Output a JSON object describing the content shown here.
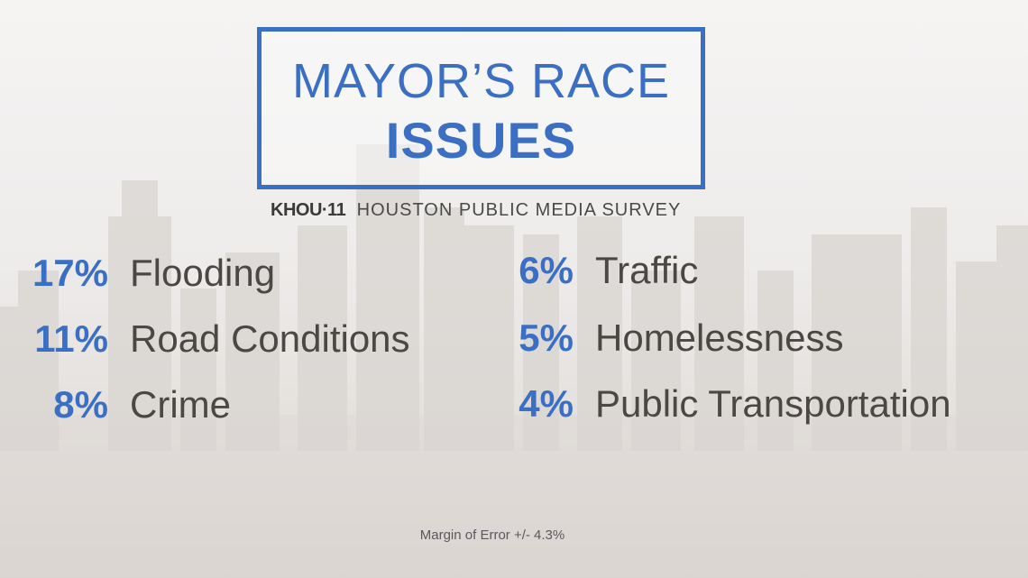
{
  "title": {
    "line1": "MAYOR’S RACE",
    "line2": "ISSUES"
  },
  "source": {
    "logo": "KHOU·11",
    "text": "HOUSTON PUBLIC MEDIA SURVEY"
  },
  "note": "Margin of Error +/- 4.3%",
  "colors": {
    "accent": "#3a6fc4",
    "label": "#4b4744",
    "skyline": "#d8d3cf"
  },
  "chart_data": {
    "type": "table",
    "title": "MAYOR’S RACE ISSUES",
    "items": [
      {
        "value": 17,
        "display": "17%",
        "label": "Flooding"
      },
      {
        "value": 11,
        "display": "11%",
        "label": "Road Conditions"
      },
      {
        "value": 8,
        "display": "8%",
        "label": "Crime"
      },
      {
        "value": 6,
        "display": "6%",
        "label": "Traffic"
      },
      {
        "value": 5,
        "display": "5%",
        "label": "Homelessness"
      },
      {
        "value": 4,
        "display": "4%",
        "label": "Public Transportation"
      }
    ]
  }
}
